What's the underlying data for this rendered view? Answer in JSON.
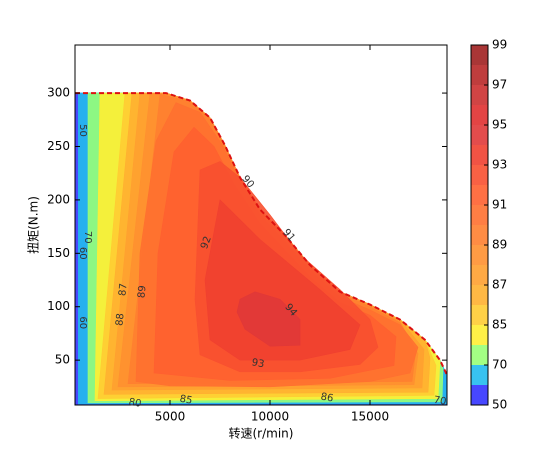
{
  "chart_data": {
    "type": "contour",
    "x_label": "转速(r/min)",
    "y_label": "扭矩(N.m)",
    "xlim": [
      250,
      18850
    ],
    "ylim": [
      8,
      345
    ],
    "xticks": [
      5000,
      10000,
      15000
    ],
    "yticks": [
      50,
      100,
      150,
      200,
      250,
      300
    ],
    "levels": [
      50,
      60,
      70,
      80,
      85,
      86,
      87,
      88,
      89,
      90,
      91,
      92,
      93,
      94,
      95,
      96,
      97,
      98,
      99
    ],
    "colors": [
      "#3333ff",
      "#22bbee",
      "#99ff77",
      "#ffee33",
      "#ffcc33",
      "#ffb030",
      "#ffa030",
      "#ff9030",
      "#ff8030",
      "#ff7030",
      "#ff6030",
      "#f85030",
      "#f04030",
      "#e03838",
      "#e03030",
      "#cc3030",
      "#b82828",
      "#a02020"
    ],
    "colorbar_ticks": [
      50,
      70,
      85,
      87,
      89,
      91,
      93,
      95,
      97,
      99
    ],
    "envelope_color": "#dd1111",
    "regions": [
      {
        "level": 50,
        "points": [
          [
            250,
            8
          ],
          [
            250,
            300
          ],
          [
            4800,
            300
          ],
          [
            6000,
            293
          ],
          [
            7000,
            277
          ],
          [
            7750,
            251
          ],
          [
            8500,
            221
          ],
          [
            9500,
            191
          ],
          [
            10750,
            167
          ],
          [
            12000,
            139
          ],
          [
            13500,
            114
          ],
          [
            15000,
            102
          ],
          [
            16500,
            88
          ],
          [
            17750,
            69
          ],
          [
            18500,
            50
          ],
          [
            18850,
            36
          ],
          [
            18850,
            8
          ]
        ]
      },
      {
        "level": 60,
        "points": [
          [
            420,
            9
          ],
          [
            420,
            300
          ],
          [
            4800,
            300
          ],
          [
            6000,
            293
          ],
          [
            7000,
            277
          ],
          [
            7750,
            251
          ],
          [
            8500,
            221
          ],
          [
            9500,
            191
          ],
          [
            10750,
            167
          ],
          [
            12000,
            139
          ],
          [
            13500,
            114
          ],
          [
            15000,
            102
          ],
          [
            16500,
            88
          ],
          [
            17750,
            69
          ],
          [
            18500,
            50
          ],
          [
            18850,
            36
          ],
          [
            18850,
            9
          ]
        ]
      },
      {
        "level": 70,
        "points": [
          [
            900,
            10
          ],
          [
            900,
            300
          ],
          [
            4800,
            300
          ],
          [
            6000,
            293
          ],
          [
            7000,
            277
          ],
          [
            7750,
            251
          ],
          [
            8500,
            221
          ],
          [
            9500,
            191
          ],
          [
            10750,
            167
          ],
          [
            12000,
            139
          ],
          [
            13500,
            114
          ],
          [
            15000,
            102
          ],
          [
            16500,
            88
          ],
          [
            17750,
            69
          ],
          [
            18500,
            50
          ],
          [
            18650,
            42
          ],
          [
            18600,
            11
          ]
        ]
      },
      {
        "level": 80,
        "points": [
          [
            1250,
            12
          ],
          [
            1500,
            300
          ],
          [
            4800,
            300
          ],
          [
            6000,
            293
          ],
          [
            7000,
            277
          ],
          [
            7750,
            251
          ],
          [
            8500,
            221
          ],
          [
            9500,
            191
          ],
          [
            10750,
            167
          ],
          [
            12000,
            139
          ],
          [
            13500,
            114
          ],
          [
            15000,
            102
          ],
          [
            16500,
            88
          ],
          [
            17750,
            69
          ],
          [
            18500,
            50
          ],
          [
            18400,
            14
          ]
        ]
      },
      {
        "level": 85,
        "points": [
          [
            1400,
            14
          ],
          [
            2750,
            300
          ],
          [
            4800,
            300
          ],
          [
            6000,
            293
          ],
          [
            7000,
            277
          ],
          [
            7750,
            251
          ],
          [
            8500,
            221
          ],
          [
            9500,
            191
          ],
          [
            10750,
            167
          ],
          [
            12000,
            139
          ],
          [
            13500,
            114
          ],
          [
            15000,
            102
          ],
          [
            16500,
            88
          ],
          [
            17750,
            69
          ],
          [
            18300,
            45
          ],
          [
            18200,
            17
          ]
        ]
      },
      {
        "level": 86,
        "points": [
          [
            1700,
            18
          ],
          [
            3100,
            300
          ],
          [
            4800,
            300
          ],
          [
            6000,
            293
          ],
          [
            7000,
            277
          ],
          [
            7750,
            251
          ],
          [
            8500,
            221
          ],
          [
            9500,
            191
          ],
          [
            10750,
            167
          ],
          [
            12000,
            139
          ],
          [
            13500,
            114
          ],
          [
            15000,
            102
          ],
          [
            16500,
            88
          ],
          [
            17750,
            69
          ],
          [
            18000,
            52
          ],
          [
            17900,
            20
          ]
        ]
      },
      {
        "level": 87,
        "points": [
          [
            2100,
            22
          ],
          [
            3500,
            300
          ],
          [
            4800,
            300
          ],
          [
            6000,
            293
          ],
          [
            7000,
            277
          ],
          [
            7750,
            251
          ],
          [
            8500,
            221
          ],
          [
            9500,
            191
          ],
          [
            10750,
            167
          ],
          [
            12000,
            139
          ],
          [
            13500,
            114
          ],
          [
            15000,
            102
          ],
          [
            16500,
            88
          ],
          [
            17700,
            60
          ],
          [
            17600,
            24
          ]
        ]
      },
      {
        "level": 88,
        "points": [
          [
            2400,
            25
          ],
          [
            4000,
            300
          ],
          [
            4800,
            300
          ],
          [
            6000,
            293
          ],
          [
            7000,
            277
          ],
          [
            7750,
            251
          ],
          [
            8500,
            221
          ],
          [
            9500,
            191
          ],
          [
            10750,
            167
          ],
          [
            12000,
            139
          ],
          [
            13500,
            114
          ],
          [
            15000,
            102
          ],
          [
            16500,
            86
          ],
          [
            17400,
            56
          ],
          [
            17200,
            27
          ]
        ]
      },
      {
        "level": 89,
        "points": [
          [
            2900,
            28
          ],
          [
            4500,
            299
          ],
          [
            6000,
            292
          ],
          [
            7000,
            276
          ],
          [
            7750,
            250
          ],
          [
            8500,
            220
          ],
          [
            9500,
            190
          ],
          [
            10750,
            166
          ],
          [
            12000,
            138
          ],
          [
            13500,
            113
          ],
          [
            15000,
            100
          ],
          [
            16500,
            85
          ],
          [
            17300,
            60
          ],
          [
            17100,
            30
          ]
        ]
      },
      {
        "level": 90,
        "points": [
          [
            3300,
            30
          ],
          [
            3500,
            150
          ],
          [
            4300,
            255
          ],
          [
            5300,
            291
          ],
          [
            6500,
            282
          ],
          [
            7600,
            252
          ],
          [
            8500,
            218
          ],
          [
            9500,
            186
          ],
          [
            10700,
            162
          ],
          [
            12000,
            134
          ],
          [
            13500,
            109
          ],
          [
            15000,
            97
          ],
          [
            16500,
            83
          ],
          [
            17400,
            62
          ],
          [
            17000,
            38
          ],
          [
            15000,
            30
          ],
          [
            10000,
            25
          ],
          [
            5000,
            26
          ]
        ]
      },
      {
        "level": 91,
        "points": [
          [
            4200,
            38
          ],
          [
            4400,
            150
          ],
          [
            5200,
            245
          ],
          [
            6200,
            268
          ],
          [
            7200,
            250
          ],
          [
            8200,
            215
          ],
          [
            9500,
            178
          ],
          [
            10800,
            152
          ],
          [
            12000,
            128
          ],
          [
            13500,
            104
          ],
          [
            15000,
            92
          ],
          [
            16300,
            72
          ],
          [
            16200,
            45
          ],
          [
            13000,
            33
          ],
          [
            8000,
            31
          ]
        ]
      },
      {
        "level": 92,
        "points": [
          [
            6250,
            107
          ],
          [
            6500,
            228
          ],
          [
            7500,
            236
          ],
          [
            8500,
            221
          ],
          [
            10000,
            186
          ],
          [
            11500,
            149
          ],
          [
            13500,
            116
          ],
          [
            15000,
            88
          ],
          [
            15400,
            62
          ],
          [
            14500,
            46
          ],
          [
            11500,
            39
          ],
          [
            8500,
            39
          ],
          [
            6500,
            55
          ]
        ]
      },
      {
        "level": 93,
        "points": [
          [
            6750,
            125
          ],
          [
            7500,
            200
          ],
          [
            9500,
            163
          ],
          [
            12500,
            116
          ],
          [
            14500,
            83
          ],
          [
            14000,
            60
          ],
          [
            11500,
            50
          ],
          [
            8500,
            50
          ],
          [
            7000,
            69
          ]
        ]
      },
      {
        "level": 94,
        "points": [
          [
            8350,
            95
          ],
          [
            8500,
            107
          ],
          [
            9250,
            114
          ],
          [
            10500,
            107
          ],
          [
            11500,
            88
          ],
          [
            11500,
            64
          ],
          [
            10000,
            63
          ],
          [
            8750,
            79
          ]
        ]
      }
    ],
    "contour_labels": [
      {
        "value": 50,
        "x": 650,
        "y": 265
      },
      {
        "value": 60,
        "x": 650,
        "y": 150
      },
      {
        "value": 70,
        "x": 900,
        "y": 165
      },
      {
        "value": 60,
        "x": 650,
        "y": 85
      },
      {
        "value": 87,
        "x": 2650,
        "y": 116
      },
      {
        "value": 88,
        "x": 2500,
        "y": 88
      },
      {
        "value": 89,
        "x": 3600,
        "y": 114
      },
      {
        "value": 90,
        "x": 8900,
        "y": 217
      },
      {
        "value": 91,
        "x": 10950,
        "y": 167
      },
      {
        "value": 92,
        "x": 6800,
        "y": 160
      },
      {
        "value": 93,
        "x": 9400,
        "y": 47
      },
      {
        "value": 94,
        "x": 11050,
        "y": 97
      },
      {
        "value": 86,
        "x": 12850,
        "y": 15
      },
      {
        "value": 85,
        "x": 5800,
        "y": 13
      },
      {
        "value": 80,
        "x": 3250,
        "y": 10
      },
      {
        "value": 70,
        "x": 18500,
        "y": 12
      }
    ]
  }
}
